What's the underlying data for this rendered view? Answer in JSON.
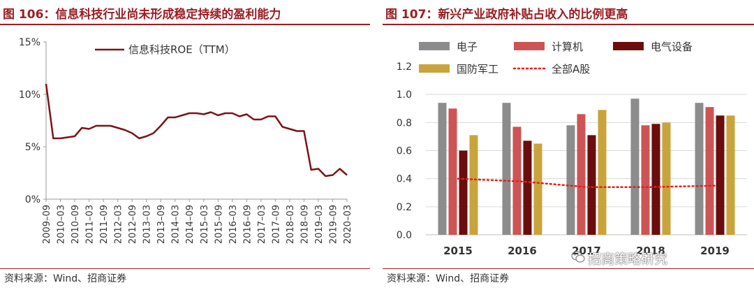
{
  "left": {
    "title": "图 106：信息科技行业尚未形成稳定持续的盈利能力",
    "source": "资料来源：Wind、招商证券"
  },
  "right": {
    "title": "图 107：新兴产业政府补贴占收入的比例更高",
    "source": "资料来源：Wind、招商证券"
  },
  "watermark": "招商策略研究",
  "watermark_icon": "wechat-icon",
  "chart_data": [
    {
      "type": "line",
      "series_name": "信息科技ROE（TTM）",
      "color": "#7b1416",
      "y_ticks": [
        "15%",
        "10%",
        "5%",
        "0%"
      ],
      "y_tick_values": [
        15,
        10,
        5,
        0
      ],
      "ylim": [
        0,
        15
      ],
      "x_ticks": [
        "2009–09",
        "2010–03",
        "2010–09",
        "2011–03",
        "2011–09",
        "2012–03",
        "2012–09",
        "2013–03",
        "2013–09",
        "2014–03",
        "2014–09",
        "2015–03",
        "2015–09",
        "2016–03",
        "2016–09",
        "2017–03",
        "2017–09",
        "2018–03",
        "2018–09",
        "2019–03",
        "2019–09",
        "2020–03"
      ],
      "x": [
        0,
        0.5,
        1,
        1.5,
        2,
        2.5,
        3,
        3.5,
        4,
        4.5,
        5,
        5.5,
        6,
        6.5,
        7,
        7.5,
        8,
        8.5,
        9,
        9.5,
        10,
        10.5,
        11,
        11.5,
        12,
        12.5,
        13,
        13.5,
        14,
        14.5,
        15,
        15.5,
        16,
        16.5,
        17,
        17.5,
        18,
        18.5,
        19,
        19.5,
        20,
        20.5,
        21
      ],
      "values": [
        11.0,
        5.8,
        5.8,
        5.9,
        6.0,
        6.8,
        6.7,
        7.0,
        7.0,
        7.0,
        6.8,
        6.6,
        6.3,
        5.8,
        6.0,
        6.3,
        7.0,
        7.8,
        7.8,
        8.0,
        8.2,
        8.2,
        8.1,
        8.3,
        8.0,
        8.2,
        8.2,
        7.9,
        8.1,
        7.6,
        7.6,
        7.9,
        7.9,
        6.9,
        6.7,
        6.5,
        6.5,
        2.8,
        2.9,
        2.2,
        2.3,
        2.9,
        2.3
      ],
      "grid": false,
      "legend_placement": "top"
    },
    {
      "type": "bar",
      "categories": [
        "2015",
        "2016",
        "2017",
        "2018",
        "2019"
      ],
      "series": [
        {
          "name": "电子",
          "color": "#8c8c8c",
          "values": [
            0.94,
            0.94,
            0.78,
            0.97,
            0.94
          ]
        },
        {
          "name": "计算机",
          "color": "#cd5454",
          "values": [
            0.9,
            0.77,
            0.86,
            0.78,
            0.91
          ]
        },
        {
          "name": "电气设备",
          "color": "#6b0d0d",
          "values": [
            0.6,
            0.67,
            0.71,
            0.79,
            0.85
          ]
        },
        {
          "name": "国防军工",
          "color": "#c9a43c",
          "values": [
            0.71,
            0.65,
            0.89,
            0.8,
            0.85
          ]
        }
      ],
      "overlay_line": {
        "name": "全部A股",
        "color": "#e02020",
        "style": "dotted",
        "values": [
          0.4,
          0.38,
          0.34,
          0.34,
          0.35
        ]
      },
      "y_ticks": [
        "1.2",
        "1.0",
        "0.8",
        "0.6",
        "0.4",
        "0.2",
        "0.0"
      ],
      "y_tick_values": [
        1.2,
        1.0,
        0.8,
        0.6,
        0.4,
        0.2,
        0.0
      ],
      "ylim": [
        0,
        1.2
      ],
      "grid": true,
      "legend_placement": "top"
    }
  ]
}
